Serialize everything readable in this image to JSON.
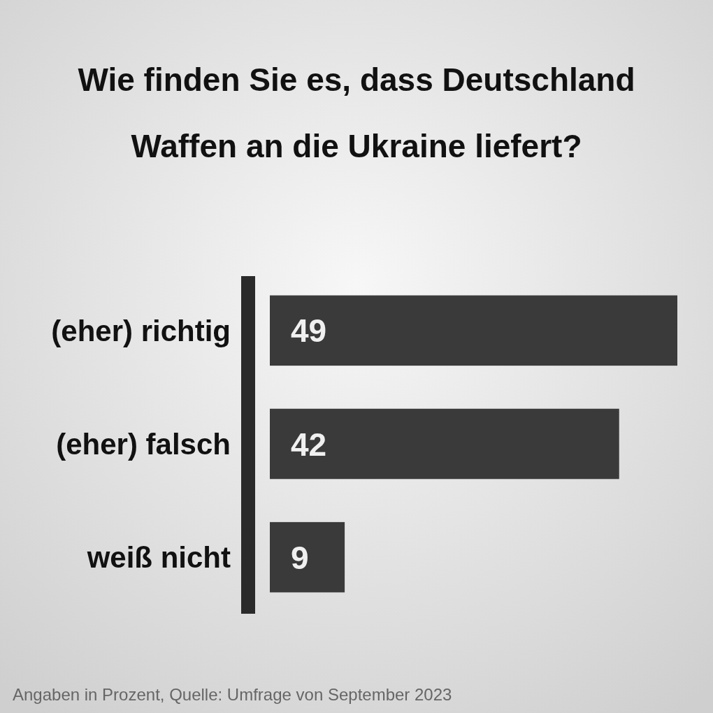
{
  "chart_data": {
    "type": "bar",
    "orientation": "horizontal",
    "title": "Wie finden Sie es, dass Deutschland Waffen an die Ukraine liefert?",
    "categories": [
      "(eher) richtig",
      "(eher) falsch",
      "weiß nicht"
    ],
    "values": [
      49,
      42,
      9
    ],
    "color": "#3a3a3a",
    "data_labels": true,
    "annotations": [
      "Angaben in Prozent, Quelle: Umfrage von September 2023"
    ]
  }
}
